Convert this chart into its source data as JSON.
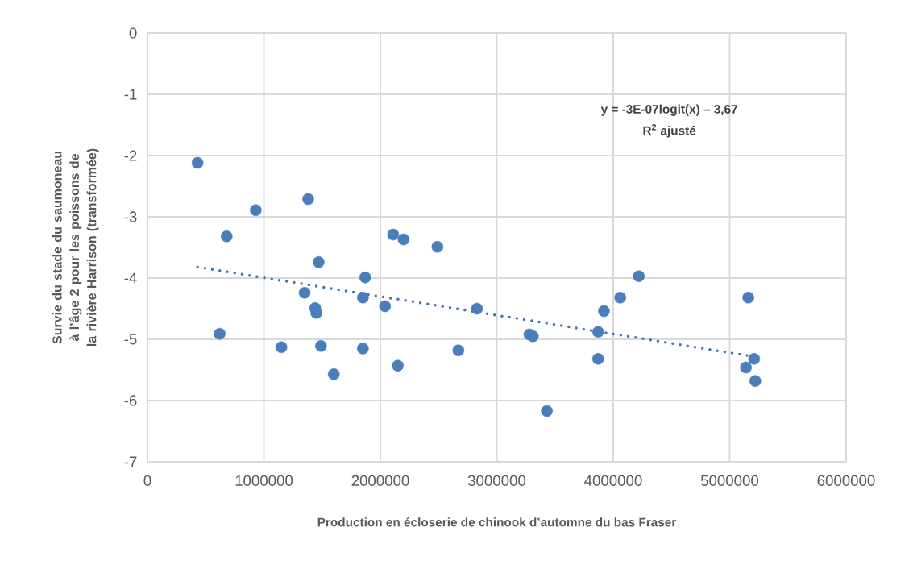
{
  "chart_data": {
    "type": "scatter",
    "xlabel": "Production en écloserie de chinook d’automne du bas Fraser",
    "ylabel": "Survie du stade du saumoneau à l’âge 2 pour les poissons de la rivière Harrison (transformée)",
    "annotations": [
      "y = -3E-07logit(x) – 3,67",
      "R$^{2}$ ajusté"
    ],
    "xlim": [
      0,
      6000000
    ],
    "xticks": [
      0,
      1000000,
      2000000,
      3000000,
      4000000,
      5000000,
      6000000
    ],
    "ylim": [
      -7,
      0
    ],
    "yticks": [
      -7,
      -6,
      -5,
      -4,
      -3,
      -2,
      -1,
      0
    ],
    "grid": true,
    "series": [
      {
        "type": "scatter",
        "marker": "circle",
        "color": "#4a7ebb",
        "x": [
          430000,
          680000,
          930000,
          620000,
          1150000,
          1380000,
          1350000,
          1470000,
          1440000,
          1450000,
          1490000,
          1600000,
          1870000,
          1850000,
          1850000,
          2040000,
          2110000,
          2200000,
          2150000,
          2490000,
          2670000,
          2830000,
          3280000,
          3310000,
          3430000,
          3870000,
          3870000,
          3920000,
          4060000,
          4220000,
          5160000,
          5210000,
          5140000,
          5220000
        ],
        "values": [
          -2.12,
          -3.32,
          -2.89,
          -4.91,
          -5.13,
          -2.71,
          -4.24,
          -3.74,
          -4.49,
          -4.57,
          -5.11,
          -5.57,
          -3.99,
          -4.32,
          -5.15,
          -4.46,
          -3.29,
          -3.37,
          -5.43,
          -3.49,
          -5.18,
          -4.5,
          -4.92,
          -4.95,
          -6.17,
          -4.88,
          -5.32,
          -4.54,
          -4.32,
          -3.97,
          -4.32,
          -5.32,
          -5.46,
          -5.68
        ]
      },
      {
        "type": "line",
        "color": "#4472a8",
        "line_style": "dotted",
        "marker": "none",
        "x": [
          430000,
          5200000
        ],
        "values": [
          -3.82,
          -5.28
        ]
      }
    ]
  }
}
